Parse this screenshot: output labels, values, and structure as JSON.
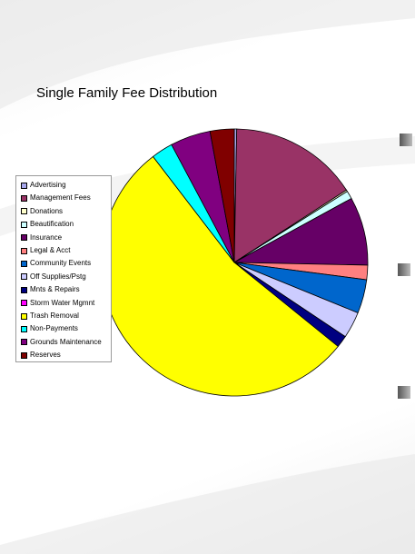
{
  "chart_data": {
    "type": "pie",
    "title": "Single Family Fee Distribution",
    "categories": [
      "Advertising",
      "Management Fees",
      "Donations",
      "Beautification",
      "Insurance",
      "Legal & Acct",
      "Community Events",
      "Off Supplies/Pstg",
      "Mnts & Repairs",
      "Storm Water Mgmnt",
      "Trash Removal",
      "Non-Payments",
      "Grounds Maintenance",
      "Reserves"
    ],
    "values": [
      0.3,
      16.0,
      0.2,
      1.0,
      8.5,
      1.8,
      4.2,
      3.3,
      1.5,
      0.0,
      55.2,
      2.7,
      5.0,
      3.0
    ],
    "colors": [
      "#a8a8ec",
      "#993366",
      "#ffffcc",
      "#ccffff",
      "#660066",
      "#ff8080",
      "#0066cc",
      "#ccccff",
      "#000080",
      "#ff00ff",
      "#ffff00",
      "#00ffff",
      "#800080",
      "#800000"
    ],
    "legend": "left"
  }
}
